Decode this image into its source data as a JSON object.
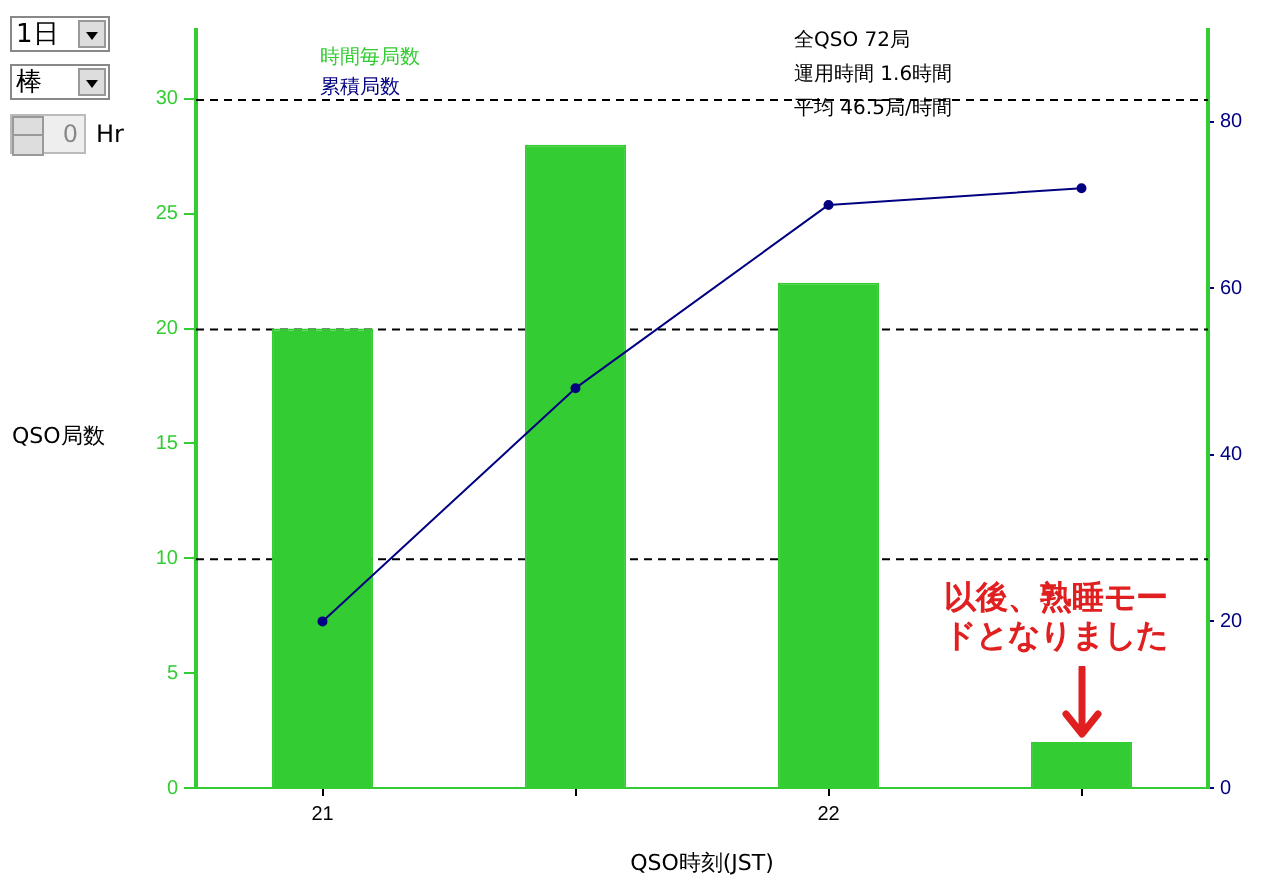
{
  "chart_data": {
    "type": "bar",
    "xlabel": "QSO時刻(JST)",
    "ylabel": "QSO局数",
    "categories": [
      "21",
      null,
      "22",
      null
    ],
    "series": [
      {
        "name": "時間毎局数",
        "color": "#33cc33",
        "values": [
          20,
          28,
          22,
          2
        ]
      },
      {
        "name": "累積局数",
        "type": "line",
        "color": "#000080",
        "axis": "y2",
        "values": [
          20,
          48,
          70,
          72
        ]
      }
    ],
    "ylim": [
      0,
      33
    ],
    "yticks": [
      0,
      5,
      10,
      15,
      20,
      25,
      30
    ],
    "y2lim": [
      0,
      91
    ],
    "y2ticks": [
      0,
      20,
      40,
      60,
      80
    ],
    "ref_lines": [
      {
        "axis": "y",
        "value": 10,
        "color": "#000000",
        "line_style": "dashed"
      },
      {
        "axis": "y",
        "value": 20,
        "color": "#000000",
        "line_style": "dashed"
      },
      {
        "axis": "y",
        "value": 30,
        "color": "#000000",
        "line_style": "dashed"
      }
    ],
    "legend": "top left",
    "marker": "circle",
    "annotations": [
      "全QSO 72局",
      "運用時間 1.6時間",
      "平均 46.5局/時間",
      "以後、熟睡モードとなりました",
      "1日",
      "棒",
      "0",
      "Hr"
    ]
  }
}
